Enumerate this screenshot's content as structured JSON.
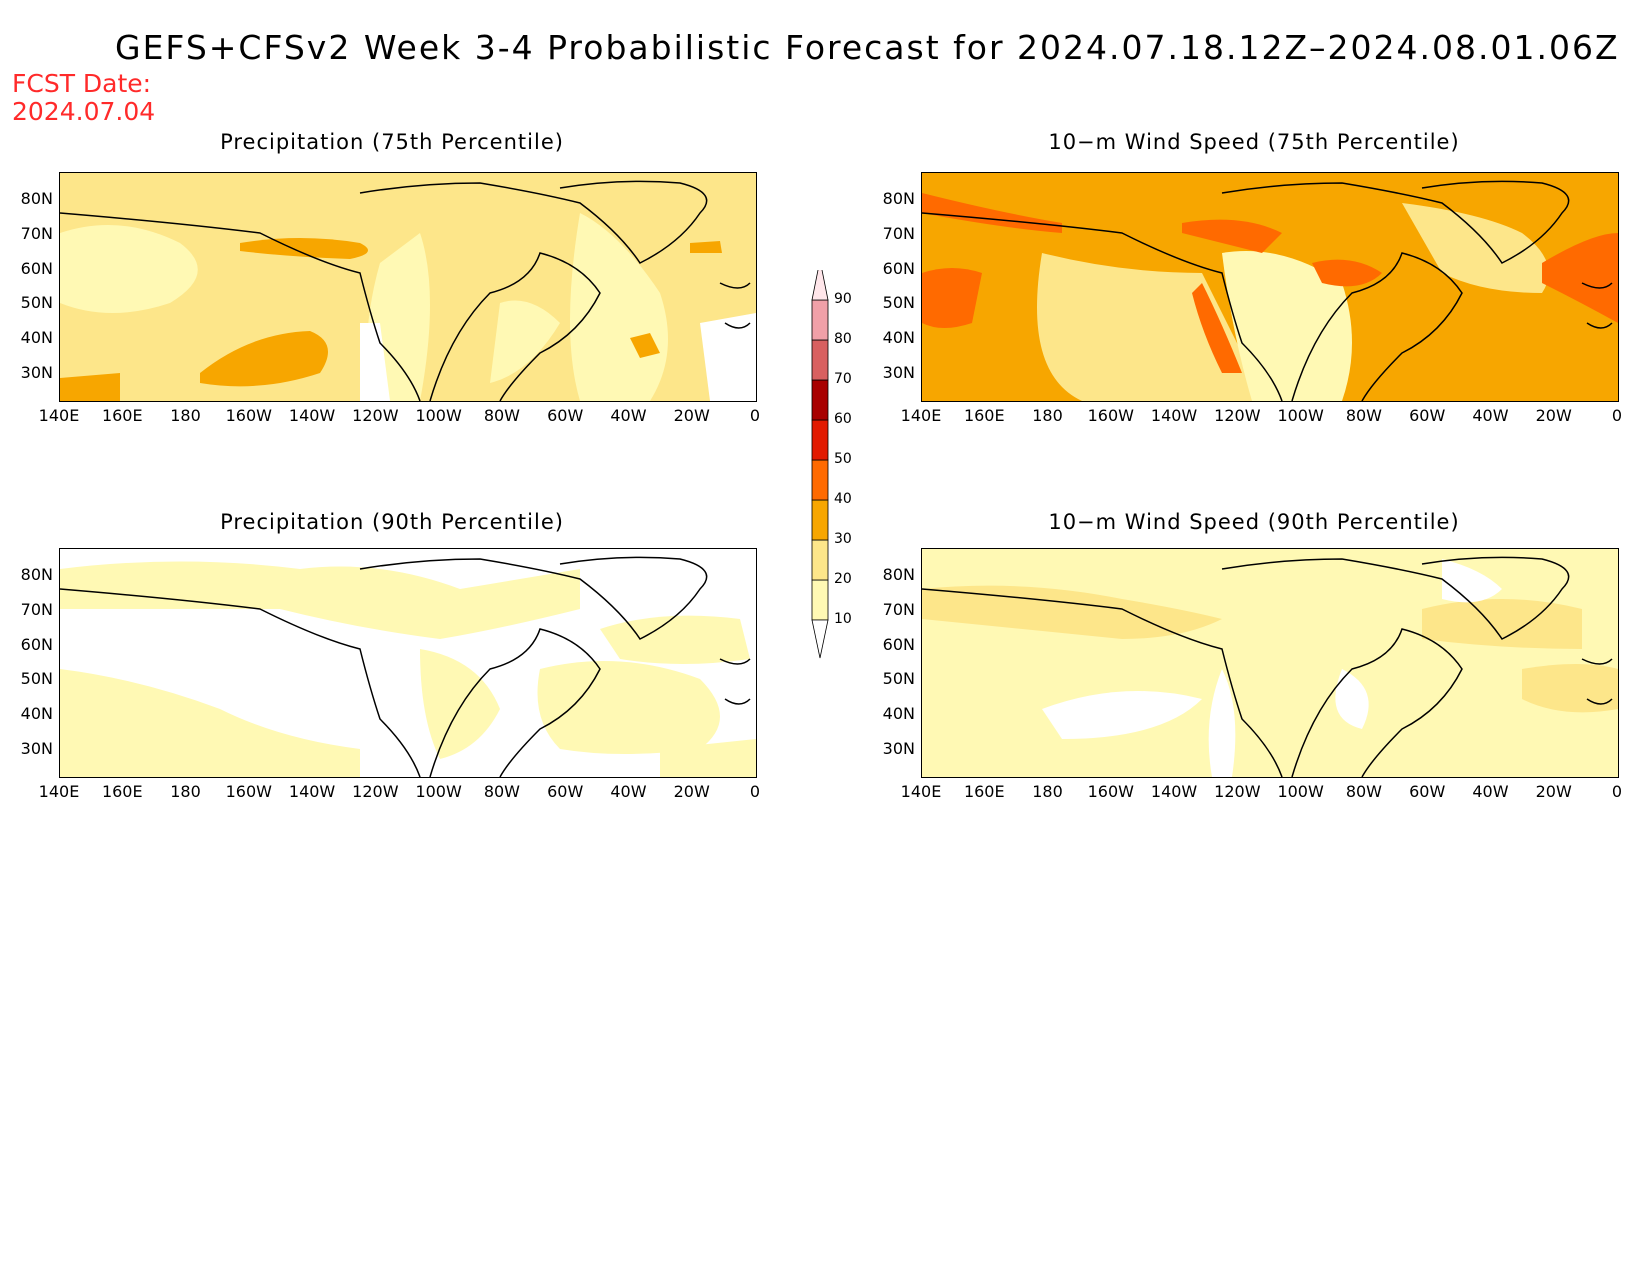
{
  "title": "GEFS+CFSv2 Week 3-4 Probabilistic Forecast for 2024.07.18.12Z–2024.08.01.06Z",
  "fcst_date_label": "FCST Date:",
  "fcst_date_value": "2024.07.04",
  "panels": [
    {
      "title": "Precipitation (75th Percentile)",
      "variable": "precipitation",
      "percentile": 75
    },
    {
      "title": "10−m Wind Speed (75th Percentile)",
      "variable": "wind",
      "percentile": 75
    },
    {
      "title": "Precipitation (90th Percentile)",
      "variable": "precipitation",
      "percentile": 90
    },
    {
      "title": "10−m Wind Speed (90th Percentile)",
      "variable": "wind",
      "percentile": 90
    }
  ],
  "lat_ticks": [
    "80N",
    "70N",
    "60N",
    "50N",
    "40N",
    "30N"
  ],
  "lon_ticks": [
    "140E",
    "160E",
    "180",
    "160W",
    "140W",
    "120W",
    "100W",
    "80W",
    "60W",
    "40W",
    "20W",
    "0"
  ],
  "colorbar": {
    "levels": [
      "10",
      "20",
      "30",
      "40",
      "50",
      "60",
      "70",
      "80",
      "90"
    ],
    "colors": [
      "#fff9b4",
      "#fde68a",
      "#f7a600",
      "#ff6a00",
      "#e21a00",
      "#a80000",
      "#d86060",
      "#f0a0a8",
      "#ffe6ea"
    ]
  },
  "map_colors": {
    "white": "#ffffff",
    "c10": "#fff9b4",
    "c20": "#fde68a",
    "c30": "#f7a600",
    "c40": "#ff6a00",
    "land_line": "#000000"
  }
}
